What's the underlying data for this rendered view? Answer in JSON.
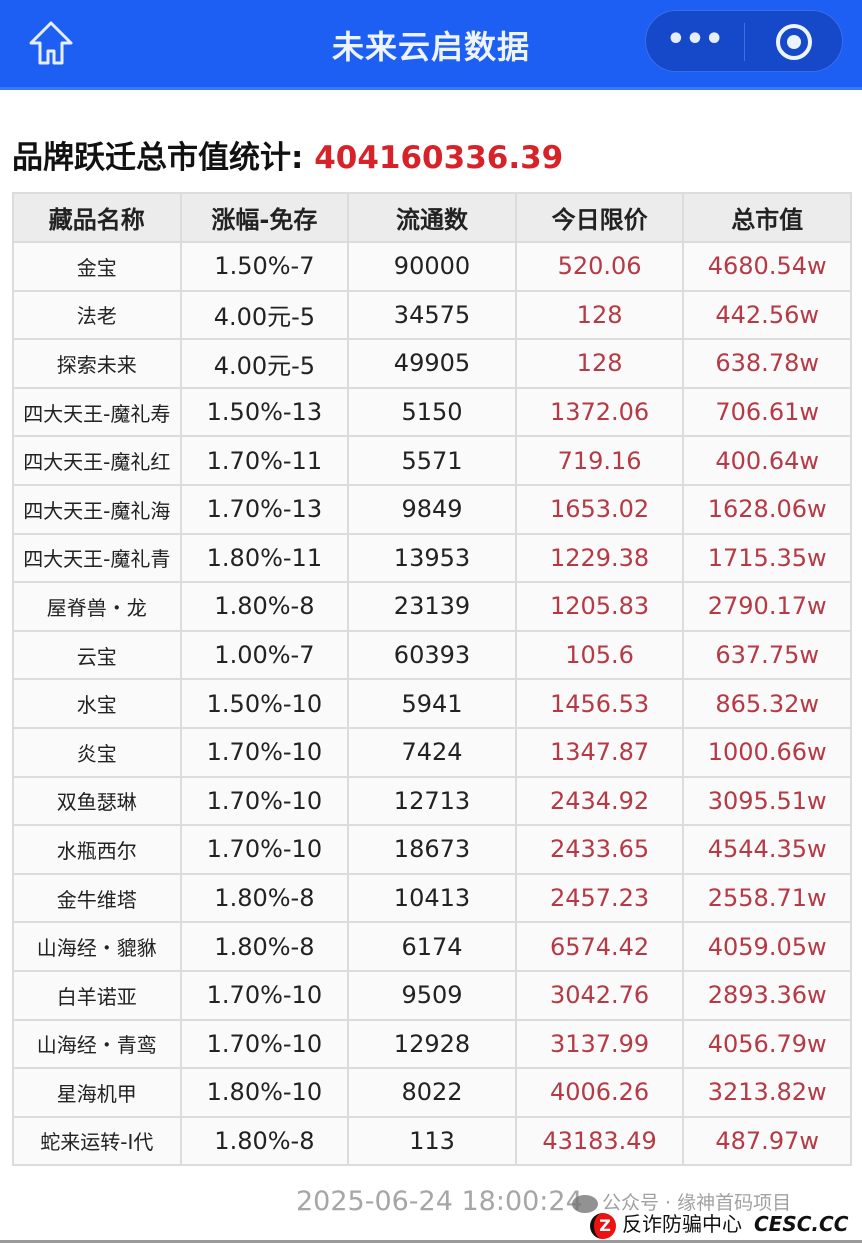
{
  "header": {
    "title": "未来云启数据",
    "home_icon": "home-icon",
    "more_icon": "more-dots-icon",
    "more_label": "•••",
    "close_icon": "target-circle-icon",
    "background": "#1d5ff3"
  },
  "stat": {
    "label": "品牌跃迁总市值统计: ",
    "value": "404160336.39",
    "value_color": "#d8222a"
  },
  "table": {
    "columns": [
      "藏品名称",
      "涨幅-免存",
      "流通数",
      "今日限价",
      "总市值"
    ],
    "rows": [
      [
        "金宝",
        "1.50%-7",
        "90000",
        "520.06",
        "4680.54w"
      ],
      [
        "法老",
        "4.00元-5",
        "34575",
        "128",
        "442.56w"
      ],
      [
        "探索未来",
        "4.00元-5",
        "49905",
        "128",
        "638.78w"
      ],
      [
        "四大天王-魔礼寿",
        "1.50%-13",
        "5150",
        "1372.06",
        "706.61w"
      ],
      [
        "四大天王-魔礼红",
        "1.70%-11",
        "5571",
        "719.16",
        "400.64w"
      ],
      [
        "四大天王-魔礼海",
        "1.70%-13",
        "9849",
        "1653.02",
        "1628.06w"
      ],
      [
        "四大天王-魔礼青",
        "1.80%-11",
        "13953",
        "1229.38",
        "1715.35w"
      ],
      [
        "屋脊兽・龙",
        "1.80%-8",
        "23139",
        "1205.83",
        "2790.17w"
      ],
      [
        "云宝",
        "1.00%-7",
        "60393",
        "105.6",
        "637.75w"
      ],
      [
        "水宝",
        "1.50%-10",
        "5941",
        "1456.53",
        "865.32w"
      ],
      [
        "炎宝",
        "1.70%-10",
        "7424",
        "1347.87",
        "1000.66w"
      ],
      [
        "双鱼瑟琳",
        "1.70%-10",
        "12713",
        "2434.92",
        "3095.51w"
      ],
      [
        "水瓶西尔",
        "1.70%-10",
        "18673",
        "2433.65",
        "4544.35w"
      ],
      [
        "金牛维塔",
        "1.80%-8",
        "10413",
        "2457.23",
        "2558.71w"
      ],
      [
        "山海经・貔貅",
        "1.80%-8",
        "6174",
        "6574.42",
        "4059.05w"
      ],
      [
        "白羊诺亚",
        "1.70%-10",
        "9509",
        "3042.76",
        "2893.36w"
      ],
      [
        "山海经・青鸾",
        "1.70%-10",
        "12928",
        "3137.99",
        "4056.79w"
      ],
      [
        "星海机甲",
        "1.80%-10",
        "8022",
        "4006.26",
        "3213.82w"
      ],
      [
        "蛇来运转-Ⅰ代",
        "1.80%-8",
        "113",
        "43183.49",
        "487.97w"
      ]
    ]
  },
  "footer": {
    "timestamp": "2025-06-24 18:00:24"
  },
  "watermarks": {
    "wechat": "公众号 · 缘神首码项目",
    "anti_fraud": "反诈防骗中心",
    "site": "CESC.CC",
    "logo_letter": "Z"
  }
}
